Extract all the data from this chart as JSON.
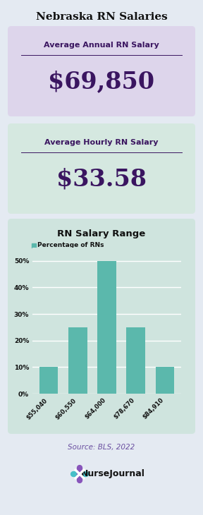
{
  "title": "Nebraska RN Salaries",
  "annual_label": "Average Annual RN Salary",
  "annual_value": "$69,850",
  "hourly_label": "Average Hourly RN Salary",
  "hourly_value": "$33.58",
  "chart_title": "RN Salary Range",
  "legend_label": "Percentage of RNs",
  "bar_categories": [
    "$55,040",
    "$60,550",
    "$64,000",
    "$78,670",
    "$84,910"
  ],
  "bar_values": [
    10,
    25,
    50,
    25,
    10
  ],
  "bar_color": "#5bb8ac",
  "ytick_labels": [
    "0%",
    "10%",
    "20%",
    "30%",
    "40%",
    "50%"
  ],
  "ytick_values": [
    0,
    10,
    20,
    30,
    40,
    50
  ],
  "bg_color": "#e4eaf2",
  "card1_color": "#ddd5eb",
  "card2_color": "#d5e8e0",
  "chart_bg_color": "#cfe4de",
  "title_color": "#111111",
  "card_label_color": "#3a1560",
  "card_value_color": "#3a1560",
  "source_text": "Source: BLS, 2022",
  "source_color": "#6a4fa0",
  "legend_dot_color": "#5bb8ac",
  "nurse_journal_text": "NurseJournal"
}
